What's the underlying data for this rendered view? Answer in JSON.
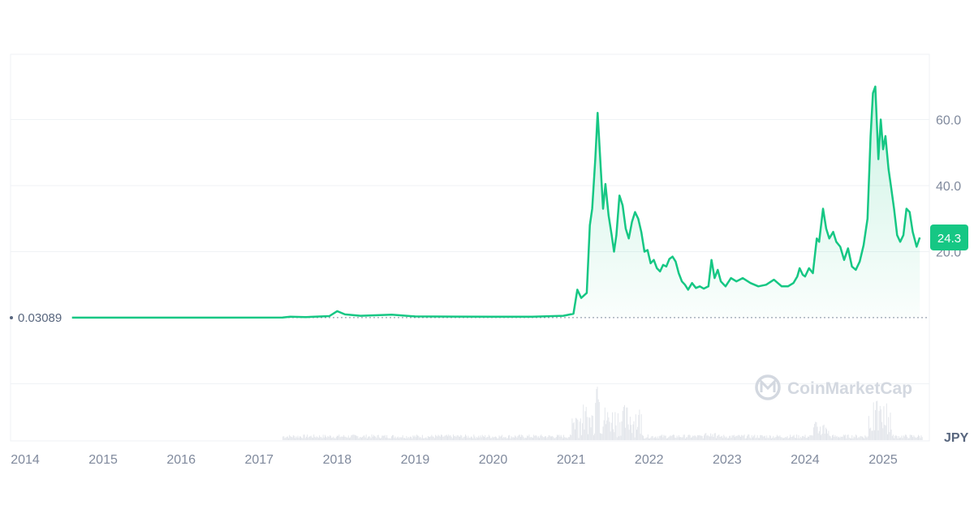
{
  "colors": {
    "line": "#16c784",
    "grid": "#eff2f5",
    "axis_text": "#808a9d",
    "badge": "#16c784",
    "volume": "#e3e6eb",
    "watermark": "#d3d8e0"
  },
  "watermark": {
    "text": "CoinMarketCap",
    "icon": "coinmarketcap-logo-icon"
  },
  "chart_data": {
    "type": "line",
    "currency": "JPY",
    "ylim": [
      -20,
      80
    ],
    "yticks": [
      {
        "value": 60,
        "label": "60.0"
      },
      {
        "value": 40,
        "label": "40.0"
      },
      {
        "value": 20,
        "label": "20.0"
      }
    ],
    "xticks": [
      {
        "year": 2014,
        "label": "2014"
      },
      {
        "year": 2015,
        "label": "2015"
      },
      {
        "year": 2016,
        "label": "2016"
      },
      {
        "year": 2017,
        "label": "2017"
      },
      {
        "year": 2018,
        "label": "2018"
      },
      {
        "year": 2019,
        "label": "2019"
      },
      {
        "year": 2020,
        "label": "2020"
      },
      {
        "year": 2021,
        "label": "2021"
      },
      {
        "year": 2022,
        "label": "2022"
      },
      {
        "year": 2023,
        "label": "2023"
      },
      {
        "year": 2024,
        "label": "2024"
      },
      {
        "year": 2025,
        "label": "2025"
      }
    ],
    "baseline": {
      "value": 0.03089,
      "label": "0.03089"
    },
    "current": {
      "value": 24.3,
      "label": "24.3"
    },
    "grid": true,
    "series": [
      {
        "values": [
          [
            2014.6,
            0.03
          ],
          [
            2015.5,
            0.03
          ],
          [
            2016.5,
            0.03
          ],
          [
            2017.3,
            0.05
          ],
          [
            2017.4,
            0.3
          ],
          [
            2017.6,
            0.2
          ],
          [
            2017.9,
            0.5
          ],
          [
            2018.0,
            2.0
          ],
          [
            2018.1,
            1.0
          ],
          [
            2018.3,
            0.6
          ],
          [
            2018.7,
            0.9
          ],
          [
            2019.0,
            0.4
          ],
          [
            2019.5,
            0.35
          ],
          [
            2020.0,
            0.3
          ],
          [
            2020.5,
            0.3
          ],
          [
            2020.9,
            0.6
          ],
          [
            2021.03,
            1.2
          ],
          [
            2021.08,
            8.5
          ],
          [
            2021.13,
            6.0
          ],
          [
            2021.2,
            7.5
          ],
          [
            2021.24,
            28.0
          ],
          [
            2021.27,
            33.0
          ],
          [
            2021.31,
            48.0
          ],
          [
            2021.34,
            62.0
          ],
          [
            2021.38,
            45.0
          ],
          [
            2021.41,
            33.0
          ],
          [
            2021.44,
            40.5
          ],
          [
            2021.48,
            31.0
          ],
          [
            2021.52,
            25.0
          ],
          [
            2021.55,
            20.0
          ],
          [
            2021.58,
            25.0
          ],
          [
            2021.62,
            37.0
          ],
          [
            2021.66,
            34.0
          ],
          [
            2021.7,
            27.0
          ],
          [
            2021.74,
            24.0
          ],
          [
            2021.78,
            29.0
          ],
          [
            2021.82,
            32.0
          ],
          [
            2021.86,
            30.0
          ],
          [
            2021.9,
            26.0
          ],
          [
            2021.94,
            20.0
          ],
          [
            2021.98,
            20.5
          ],
          [
            2022.02,
            16.5
          ],
          [
            2022.06,
            17.5
          ],
          [
            2022.1,
            15.0
          ],
          [
            2022.14,
            14.0
          ],
          [
            2022.18,
            16.0
          ],
          [
            2022.22,
            15.5
          ],
          [
            2022.26,
            17.8
          ],
          [
            2022.3,
            18.5
          ],
          [
            2022.34,
            17.0
          ],
          [
            2022.38,
            13.5
          ],
          [
            2022.42,
            11.0
          ],
          [
            2022.46,
            10.0
          ],
          [
            2022.5,
            8.5
          ],
          [
            2022.55,
            10.5
          ],
          [
            2022.6,
            9.0
          ],
          [
            2022.65,
            9.5
          ],
          [
            2022.7,
            8.8
          ],
          [
            2022.76,
            9.5
          ],
          [
            2022.8,
            17.5
          ],
          [
            2022.84,
            12.0
          ],
          [
            2022.88,
            14.5
          ],
          [
            2022.92,
            11.0
          ],
          [
            2022.98,
            9.5
          ],
          [
            2023.05,
            12.0
          ],
          [
            2023.12,
            11.0
          ],
          [
            2023.2,
            12.0
          ],
          [
            2023.3,
            10.5
          ],
          [
            2023.4,
            9.5
          ],
          [
            2023.5,
            10.0
          ],
          [
            2023.6,
            11.5
          ],
          [
            2023.7,
            9.5
          ],
          [
            2023.78,
            9.5
          ],
          [
            2023.85,
            10.5
          ],
          [
            2023.9,
            12.5
          ],
          [
            2023.93,
            15.0
          ],
          [
            2023.97,
            13.0
          ],
          [
            2024.0,
            12.5
          ],
          [
            2024.05,
            15.0
          ],
          [
            2024.1,
            13.5
          ],
          [
            2024.15,
            24.0
          ],
          [
            2024.18,
            23.0
          ],
          [
            2024.23,
            33.0
          ],
          [
            2024.27,
            27.0
          ],
          [
            2024.31,
            24.0
          ],
          [
            2024.36,
            26.0
          ],
          [
            2024.4,
            23.0
          ],
          [
            2024.45,
            21.5
          ],
          [
            2024.5,
            17.5
          ],
          [
            2024.55,
            21.0
          ],
          [
            2024.6,
            15.5
          ],
          [
            2024.65,
            14.5
          ],
          [
            2024.7,
            17.0
          ],
          [
            2024.75,
            22.0
          ],
          [
            2024.8,
            30.0
          ],
          [
            2024.84,
            55.0
          ],
          [
            2024.87,
            68.0
          ],
          [
            2024.9,
            70.0
          ],
          [
            2024.94,
            48.0
          ],
          [
            2024.97,
            60.0
          ],
          [
            2025.0,
            51.0
          ],
          [
            2025.03,
            55.0
          ],
          [
            2025.07,
            45.0
          ],
          [
            2025.1,
            40.0
          ],
          [
            2025.14,
            33.0
          ],
          [
            2025.18,
            25.0
          ],
          [
            2025.22,
            23.0
          ],
          [
            2025.26,
            25.0
          ],
          [
            2025.3,
            33.0
          ],
          [
            2025.34,
            32.0
          ],
          [
            2025.38,
            26.0
          ],
          [
            2025.43,
            21.5
          ],
          [
            2025.47,
            24.3
          ]
        ]
      }
    ]
  }
}
